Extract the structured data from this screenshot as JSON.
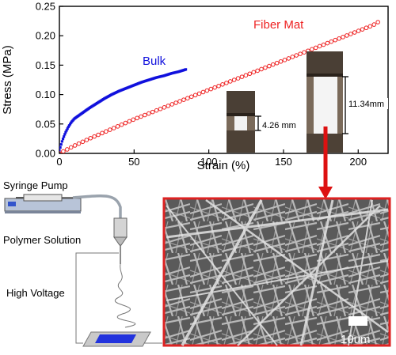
{
  "chart_data": {
    "type": "scatter",
    "xlabel": "Strain (%)",
    "ylabel": "Stress (MPa)",
    "xlim": [
      0,
      220
    ],
    "ylim": [
      0,
      0.25
    ],
    "xticks": [
      "0",
      "50",
      "100",
      "150",
      "200"
    ],
    "yticks": [
      "0.00",
      "0.05",
      "0.10",
      "0.15",
      "0.20",
      "0.25"
    ],
    "series": [
      {
        "name": "Bulk",
        "color": "#1010dd",
        "marker": "filled-square",
        "x": [
          0,
          2,
          4,
          6,
          8,
          10,
          15,
          20,
          25,
          30,
          35,
          40,
          45,
          50,
          55,
          60,
          65,
          70,
          75,
          80,
          85
        ],
        "y": [
          0.005,
          0.022,
          0.035,
          0.045,
          0.053,
          0.059,
          0.068,
          0.077,
          0.085,
          0.093,
          0.1,
          0.106,
          0.111,
          0.116,
          0.121,
          0.125,
          0.129,
          0.132,
          0.136,
          0.139,
          0.143
        ]
      },
      {
        "name": "Fiber Mat",
        "color": "#ee2222",
        "marker": "open-circle",
        "x": [
          0,
          10,
          20,
          30,
          40,
          50,
          60,
          70,
          80,
          90,
          100,
          110,
          120,
          130,
          140,
          150,
          160,
          170,
          180,
          190,
          200,
          210,
          215
        ],
        "y": [
          0.0,
          0.013,
          0.025,
          0.036,
          0.047,
          0.058,
          0.068,
          0.078,
          0.088,
          0.098,
          0.108,
          0.118,
          0.128,
          0.138,
          0.148,
          0.158,
          0.168,
          0.178,
          0.188,
          0.198,
          0.208,
          0.218,
          0.226
        ]
      }
    ],
    "annotations": [
      "4.26 mm",
      "11.34mm"
    ]
  },
  "schematic": {
    "syringe_pump": "Syringe Pump",
    "polymer_solution": "Polymer Solution",
    "high_voltage": "High Voltage"
  },
  "sem": {
    "scale_bar": "10um",
    "frame_color": "#dd2222"
  }
}
